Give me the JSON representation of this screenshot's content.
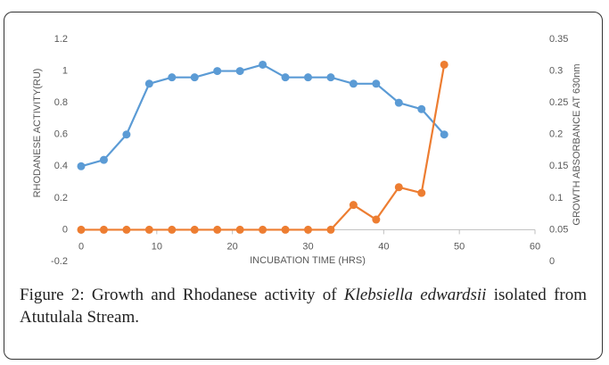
{
  "chart_data": {
    "type": "line",
    "x_label": "INCUBATION TIME (HRS)",
    "y_label": "RHODANESE ACTIVITY(RU)",
    "y2_label": "GROWTH ABSORBANCE AT 630nm",
    "x": [
      0,
      3,
      6,
      9,
      12,
      15,
      18,
      21,
      24,
      27,
      30,
      33,
      36,
      39,
      42,
      45,
      48
    ],
    "series": [
      {
        "color": "#5b9bd5",
        "values": [
          0.4,
          0.44,
          0.6,
          0.92,
          0.96,
          0.96,
          1.0,
          1.0,
          1.04,
          0.96,
          0.96,
          0.96,
          0.92,
          0.92,
          0.8,
          0.76,
          0.6
        ]
      },
      {
        "color": "#ed7d31",
        "axis": "y2",
        "values": [
          0.05,
          0.05,
          0.05,
          0.05,
          0.05,
          0.05,
          0.05,
          0.05,
          0.05,
          0.05,
          0.05,
          0.05,
          0.089,
          0.066,
          0.117,
          0.108,
          0.31
        ]
      }
    ],
    "xlim": [
      0,
      60
    ],
    "xticks": [
      0,
      10,
      20,
      30,
      40,
      50,
      60
    ],
    "ylim": [
      -0.2,
      1.2
    ],
    "yticks": [
      -0.2,
      0,
      0.2,
      0.4,
      0.6,
      0.8,
      1,
      1.2
    ],
    "y2lim": [
      0,
      0.35
    ],
    "y2ticks": [
      0,
      0.05,
      0.1,
      0.15,
      0.2,
      0.25,
      0.3,
      0.35
    ],
    "grid": false
  },
  "caption": {
    "prefix": "Figure 2: Growth and Rhodanese activity of ",
    "species": "Klebsiella edwardsii",
    "suffix": " isolated from Atutulala Stream."
  }
}
